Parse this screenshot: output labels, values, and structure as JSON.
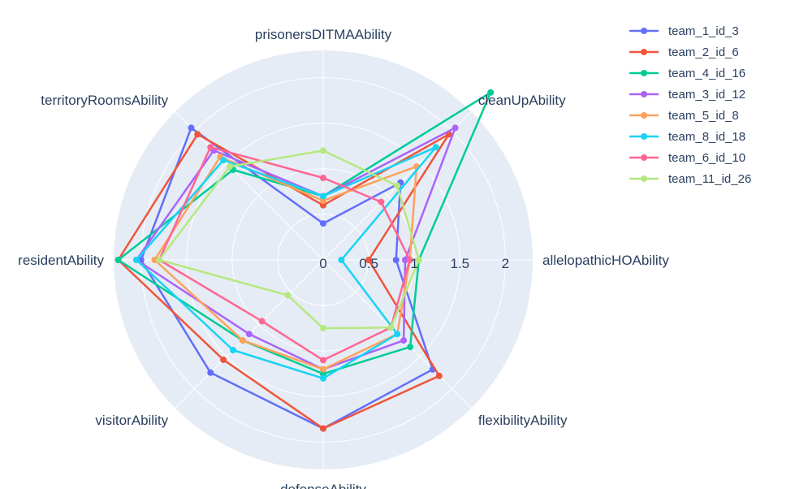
{
  "chart_data": {
    "type": "radar",
    "axes": [
      "prisonersDITMAAbility",
      "cleanUpAbility",
      "allelopathicHOAbility",
      "flexibilityAbility",
      "defenseAbility",
      "visitorAbility",
      "residentAbility",
      "territoryRoomsAbility"
    ],
    "radial_ticks": [
      "0",
      "0.5",
      "1",
      "1.5",
      "2"
    ],
    "rlim": [
      0,
      2.3
    ],
    "grid": true,
    "legend_position": "top-right",
    "series": [
      {
        "name": "team_1_id_3",
        "color": "#636efa",
        "values": [
          0.4,
          1.2,
          0.8,
          1.7,
          1.85,
          1.75,
          2.0,
          2.05
        ]
      },
      {
        "name": "team_2_id_6",
        "color": "#ef553b",
        "values": [
          0.6,
          1.95,
          0.5,
          1.8,
          1.85,
          1.55,
          2.25,
          1.95
        ]
      },
      {
        "name": "team_4_id_16",
        "color": "#00cc96",
        "values": [
          0.7,
          2.6,
          1.05,
          1.35,
          1.25,
          1.25,
          2.25,
          1.4
        ]
      },
      {
        "name": "team_3_id_12",
        "color": "#ab63fa",
        "values": [
          0.7,
          2.05,
          0.9,
          1.25,
          1.2,
          1.15,
          2.05,
          1.7
        ]
      },
      {
        "name": "team_5_id_8",
        "color": "#ffa15a",
        "values": [
          0.65,
          1.45,
          0.95,
          1.15,
          1.2,
          1.25,
          1.85,
          1.6
        ]
      },
      {
        "name": "team_8_id_18",
        "color": "#19d3f3",
        "values": [
          0.7,
          1.75,
          0.2,
          1.15,
          1.3,
          1.4,
          2.05,
          1.55
        ]
      },
      {
        "name": "team_6_id_10",
        "color": "#ff6692",
        "values": [
          0.9,
          0.9,
          0.95,
          1.05,
          1.1,
          0.95,
          1.8,
          1.75
        ]
      },
      {
        "name": "team_11_id_26",
        "color": "#b6e880",
        "values": [
          1.2,
          1.15,
          1.05,
          1.05,
          0.75,
          0.55,
          1.8,
          1.45
        ]
      }
    ]
  }
}
